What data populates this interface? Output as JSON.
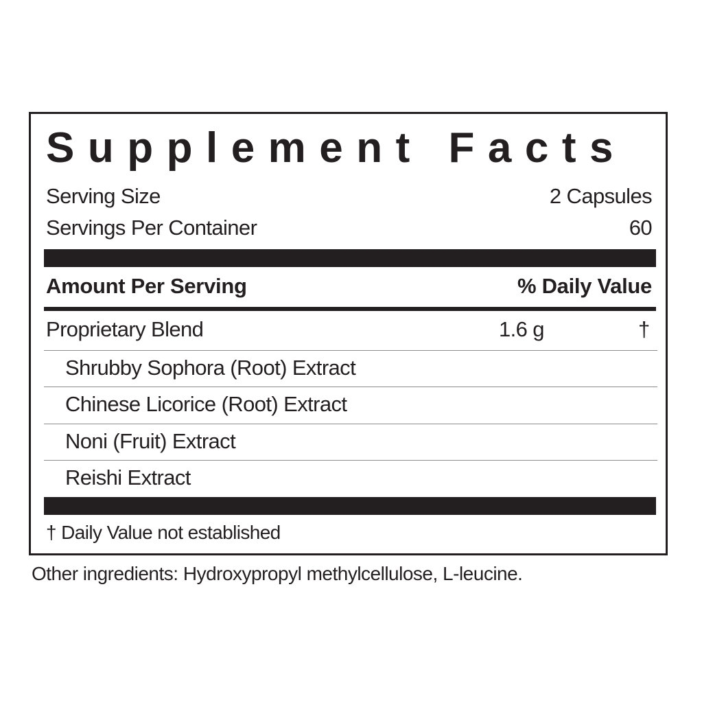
{
  "title": "Supplement Facts",
  "serving_size_label": "Serving Size",
  "serving_size_value": "2 Capsules",
  "servings_per_container_label": "Servings Per Container",
  "servings_per_container_value": "60",
  "header": {
    "amount": "Amount Per Serving",
    "daily_value": "% Daily Value"
  },
  "blend": {
    "name": "Proprietary Blend",
    "amount": "1.6 g",
    "dv": "†"
  },
  "ingredients": [
    "Shrubby Sophora (Root) Extract",
    "Chinese Licorice (Root) Extract",
    "Noni (Fruit) Extract",
    "Reishi Extract"
  ],
  "footnote": "† Daily Value not established",
  "other_ingredients": "Other ingredients: Hydroxypropyl methylcellulose, L-leucine."
}
